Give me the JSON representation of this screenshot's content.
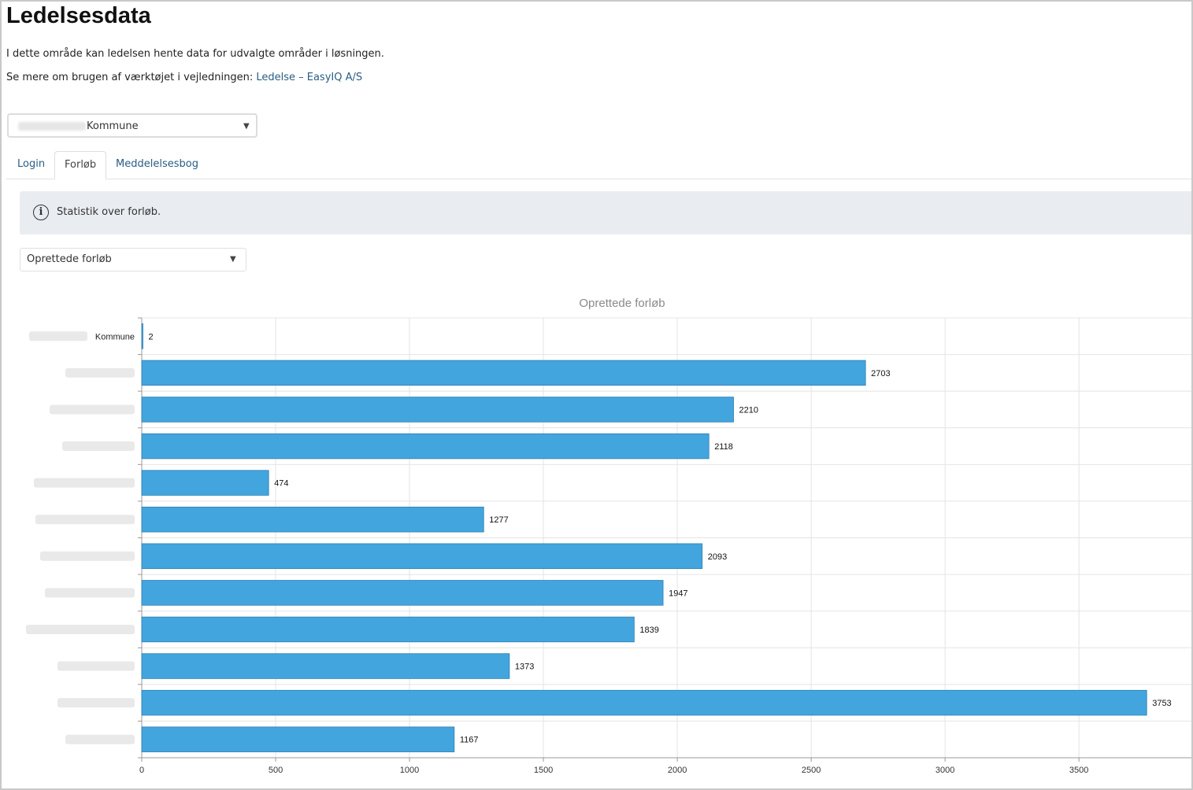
{
  "page": {
    "title": "Ledelsesdata",
    "intro": "I dette område kan ledelsen hente data for udvalgte områder i løsningen.",
    "guide_prefix": "Se mere om brugen af værktøjet i vejledningen: ",
    "guide_link": "Ledelse – EasyIQ A/S"
  },
  "municipality_select": {
    "value": "Kommune",
    "caret": "▼"
  },
  "tabs": [
    {
      "label": "Login"
    },
    {
      "label": "Forløb"
    },
    {
      "label": "Meddelelsesbog"
    }
  ],
  "active_tab": "Forløb",
  "info": {
    "icon": "info-circle-icon",
    "text": "Statistik over forløb."
  },
  "chart_select": {
    "value": "Oprettede forløb",
    "caret": "▼"
  },
  "colors": {
    "bar": "#42a5de",
    "link": "#2a5d84",
    "info_bg": "#e9ecf1"
  },
  "chart_data": {
    "type": "bar",
    "orientation": "horizontal",
    "title": "Oprettede forløb",
    "categories": [
      "Kommune",
      "",
      "",
      "",
      "",
      "",
      "",
      "",
      "",
      "",
      "",
      ""
    ],
    "values": [
      2,
      2703,
      2210,
      2118,
      474,
      1277,
      2093,
      1947,
      1839,
      1373,
      3753,
      1167
    ],
    "x_ticks": [
      0,
      500,
      1000,
      1500,
      2000,
      2500,
      3000,
      3500
    ],
    "xlim": [
      0,
      3920
    ],
    "grid": true,
    "data_labels": true
  }
}
